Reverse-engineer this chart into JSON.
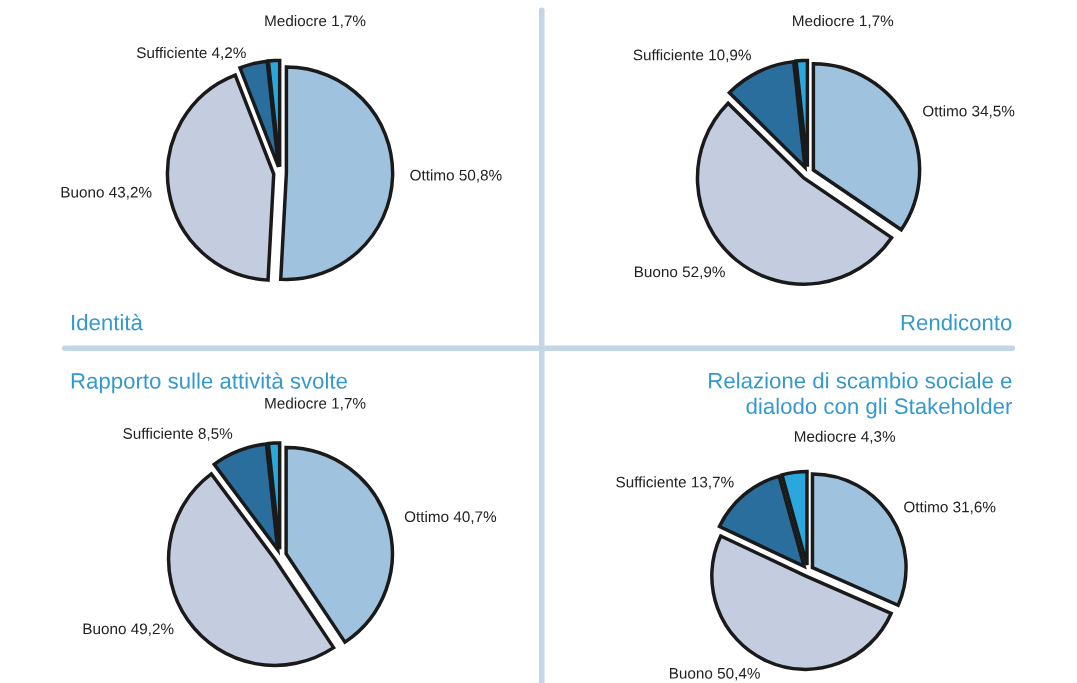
{
  "chart_data": [
    {
      "type": "pie",
      "title": "Identità",
      "categories": [
        "Ottimo",
        "Buono",
        "Sufficiente",
        "Mediocre"
      ],
      "values": [
        50.8,
        43.2,
        4.2,
        1.7
      ],
      "value_labels": [
        "50,8%",
        "43,2%",
        "4,2%",
        "1,7%"
      ],
      "colors": [
        "#9fc3de",
        "#c3cddf",
        "#2a6e9e",
        "#2aa7dc"
      ]
    },
    {
      "type": "pie",
      "title": "Rendiconto",
      "categories": [
        "Ottimo",
        "Buono",
        "Sufficiente",
        "Mediocre"
      ],
      "values": [
        34.5,
        52.9,
        10.9,
        1.7
      ],
      "value_labels": [
        "34,5%",
        "52,9%",
        "10,9%",
        "1,7%"
      ],
      "colors": [
        "#9fc3de",
        "#c3cddf",
        "#2a6e9e",
        "#2aa7dc"
      ]
    },
    {
      "type": "pie",
      "title": "Rapporto sulle attività svolte",
      "categories": [
        "Ottimo",
        "Buono",
        "Sufficiente",
        "Mediocre"
      ],
      "values": [
        40.7,
        49.2,
        8.5,
        1.7
      ],
      "value_labels": [
        "40,7%",
        "49,2%",
        "8,5%",
        "1,7%"
      ],
      "colors": [
        "#9fc3de",
        "#c3cddf",
        "#2a6e9e",
        "#2aa7dc"
      ]
    },
    {
      "type": "pie",
      "title": "Relazione di scambio sociale e\ndialodo con gli Stakeholder",
      "categories": [
        "Ottimo",
        "Buono",
        "Sufficiente",
        "Mediocre"
      ],
      "values": [
        31.6,
        50.4,
        13.7,
        4.3
      ],
      "value_labels": [
        "31,6%",
        "50,4%",
        "13,7%",
        "4,3%"
      ],
      "colors": [
        "#9fc3de",
        "#c3cddf",
        "#2a6e9e",
        "#2aa7dc"
      ]
    }
  ]
}
